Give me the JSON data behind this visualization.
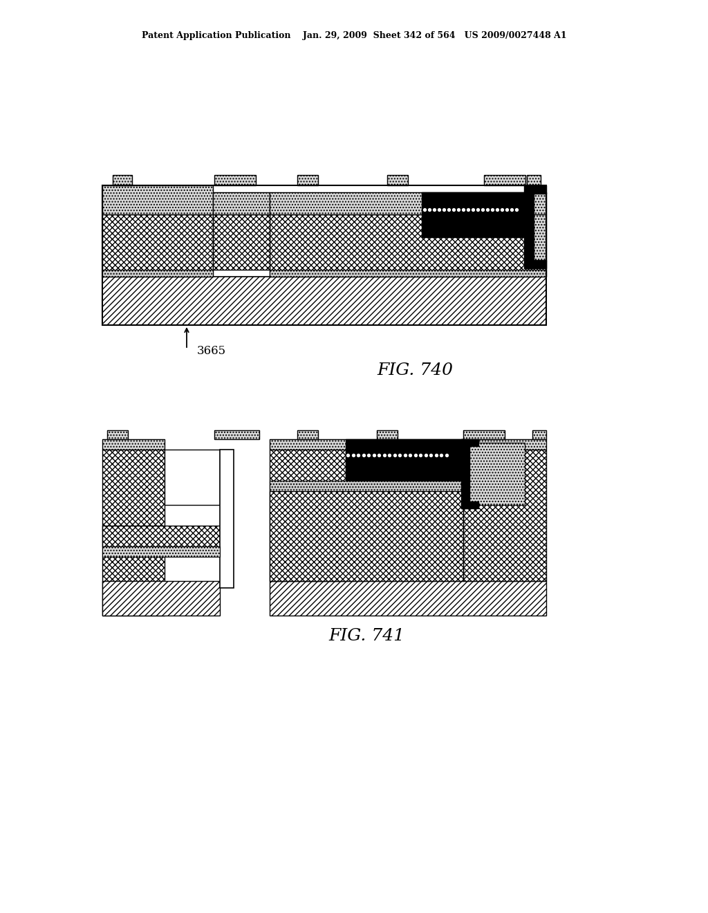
{
  "title_text": "Patent Application Publication    Jan. 29, 2009  Sheet 342 of 564   US 2009/0027448 A1",
  "fig740_label": "FIG. 740",
  "fig741_label": "FIG. 741",
  "label_3665": "3665",
  "bg_color": "#ffffff"
}
